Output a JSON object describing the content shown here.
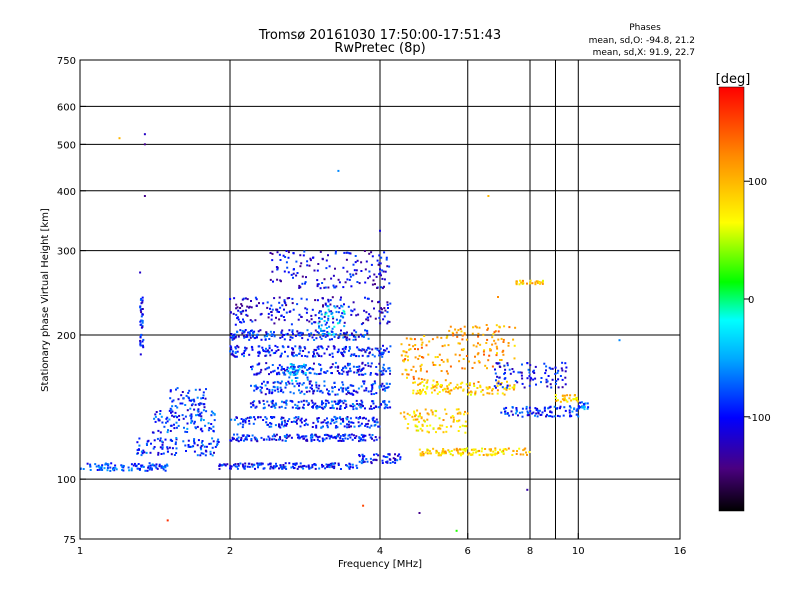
{
  "chart_data": {
    "type": "scatter",
    "title": "Tromsø 20161030 17:50:00-17:51:43",
    "subtitle": "RwPretec (8p)",
    "xlabel": "Frequency [MHz]",
    "ylabel": "Stationary phase Virtual Height [km]",
    "x_scale": "log",
    "y_scale": "log",
    "xlim": [
      1,
      16
    ],
    "ylim": [
      75,
      750
    ],
    "grid": true,
    "x_ticks": [
      1,
      2,
      4,
      6,
      8,
      10,
      16
    ],
    "x_gridlines": [
      2,
      4,
      6,
      8,
      9,
      10
    ],
    "y_ticks": [
      75,
      100,
      200,
      300,
      400,
      500,
      600,
      750
    ],
    "y_gridlines": [
      100,
      200,
      300,
      400,
      500,
      600
    ],
    "stats_header": "Phases",
    "stats": [
      "mean, sd,O: -94.8, 21.2",
      "mean, sd,X:  91.9, 22.7"
    ],
    "colorbar": {
      "label": "[deg]",
      "range": [
        -180,
        180
      ],
      "ticks": [
        100,
        0,
        -100
      ]
    },
    "traces": [
      {
        "f": [
          1.0,
          1.5
        ],
        "h": [
          104,
          108
        ],
        "phase": -80
      },
      {
        "f": [
          1.3,
          1.9
        ],
        "h": [
          112,
          122
        ],
        "phase": -90
      },
      {
        "f": [
          1.4,
          1.9
        ],
        "h": [
          125,
          140
        ],
        "phase": -85
      },
      {
        "f": [
          1.5,
          1.8
        ],
        "h": [
          135,
          155
        ],
        "phase": -90
      },
      {
        "f": [
          1.9,
          3.6
        ],
        "h": [
          105,
          108
        ],
        "phase": -95
      },
      {
        "f": [
          3.6,
          4.4
        ],
        "h": [
          108,
          113
        ],
        "phase": -95
      },
      {
        "f": [
          2.0,
          4.0
        ],
        "h": [
          120,
          124
        ],
        "phase": -95
      },
      {
        "f": [
          2.0,
          4.0
        ],
        "h": [
          128,
          135
        ],
        "phase": -90
      },
      {
        "f": [
          2.2,
          4.2
        ],
        "h": [
          140,
          146
        ],
        "phase": -90
      },
      {
        "f": [
          2.2,
          4.2
        ],
        "h": [
          150,
          160
        ],
        "phase": -90
      },
      {
        "f": [
          2.2,
          4.2
        ],
        "h": [
          165,
          175
        ],
        "phase": -95
      },
      {
        "f": [
          2.0,
          4.2
        ],
        "h": [
          180,
          190
        ],
        "phase": -95
      },
      {
        "f": [
          2.0,
          3.8
        ],
        "h": [
          195,
          205
        ],
        "phase": -95
      },
      {
        "f": [
          2.0,
          4.2
        ],
        "h": [
          210,
          240
        ],
        "phase": -110
      },
      {
        "f": [
          2.4,
          4.2
        ],
        "h": [
          250,
          300
        ],
        "phase": -110
      },
      {
        "f": [
          4.6,
          7.5
        ],
        "h": [
          150,
          160
        ],
        "phase": 90
      },
      {
        "f": [
          4.8,
          8.0
        ],
        "h": [
          112,
          116
        ],
        "phase": 90
      },
      {
        "f": [
          4.4,
          5.5
        ],
        "h": [
          160,
          200
        ],
        "phase": 110
      },
      {
        "f": [
          5.5,
          7.5
        ],
        "h": [
          170,
          210
        ],
        "phase": 110
      },
      {
        "f": [
          4.4,
          6.0
        ],
        "h": [
          125,
          140
        ],
        "phase": 85
      },
      {
        "f": [
          7.0,
          10.0
        ],
        "h": [
          135,
          142
        ],
        "phase": -90
      },
      {
        "f": [
          6.8,
          9.5
        ],
        "h": [
          155,
          175
        ],
        "phase": -100
      },
      {
        "f": [
          9.0,
          10.0
        ],
        "h": [
          145,
          150
        ],
        "phase": 90
      },
      {
        "f": [
          10.0,
          10.5
        ],
        "h": [
          140,
          145
        ],
        "phase": -70
      },
      {
        "f": [
          3.0,
          3.4
        ],
        "h": [
          200,
          230
        ],
        "phase": -40
      },
      {
        "f": [
          2.6,
          2.9
        ],
        "h": [
          160,
          175
        ],
        "phase": -50
      },
      {
        "f": [
          7.5,
          8.5
        ],
        "h": [
          255,
          260
        ],
        "phase": 90
      },
      {
        "f": [
          1.32,
          1.34
        ],
        "h": [
          180,
          240
        ],
        "phase": -100
      }
    ],
    "isolated_points": [
      {
        "f": 1.2,
        "h": 515,
        "phase": 100
      },
      {
        "f": 1.35,
        "h": 500,
        "phase": -140
      },
      {
        "f": 1.35,
        "h": 525,
        "phase": -120
      },
      {
        "f": 1.35,
        "h": 390,
        "phase": -140
      },
      {
        "f": 1.32,
        "h": 270,
        "phase": -120
      },
      {
        "f": 1.5,
        "h": 82,
        "phase": 160
      },
      {
        "f": 3.3,
        "h": 440,
        "phase": -60
      },
      {
        "f": 4.0,
        "h": 330,
        "phase": -110
      },
      {
        "f": 6.6,
        "h": 390,
        "phase": 100
      },
      {
        "f": 6.9,
        "h": 240,
        "phase": 120
      },
      {
        "f": 7.9,
        "h": 95,
        "phase": -130
      },
      {
        "f": 12.1,
        "h": 195,
        "phase": -60
      },
      {
        "f": 4.8,
        "h": 85,
        "phase": -140
      },
      {
        "f": 5.7,
        "h": 78,
        "phase": 20
      },
      {
        "f": 3.7,
        "h": 88,
        "phase": 150
      }
    ]
  }
}
